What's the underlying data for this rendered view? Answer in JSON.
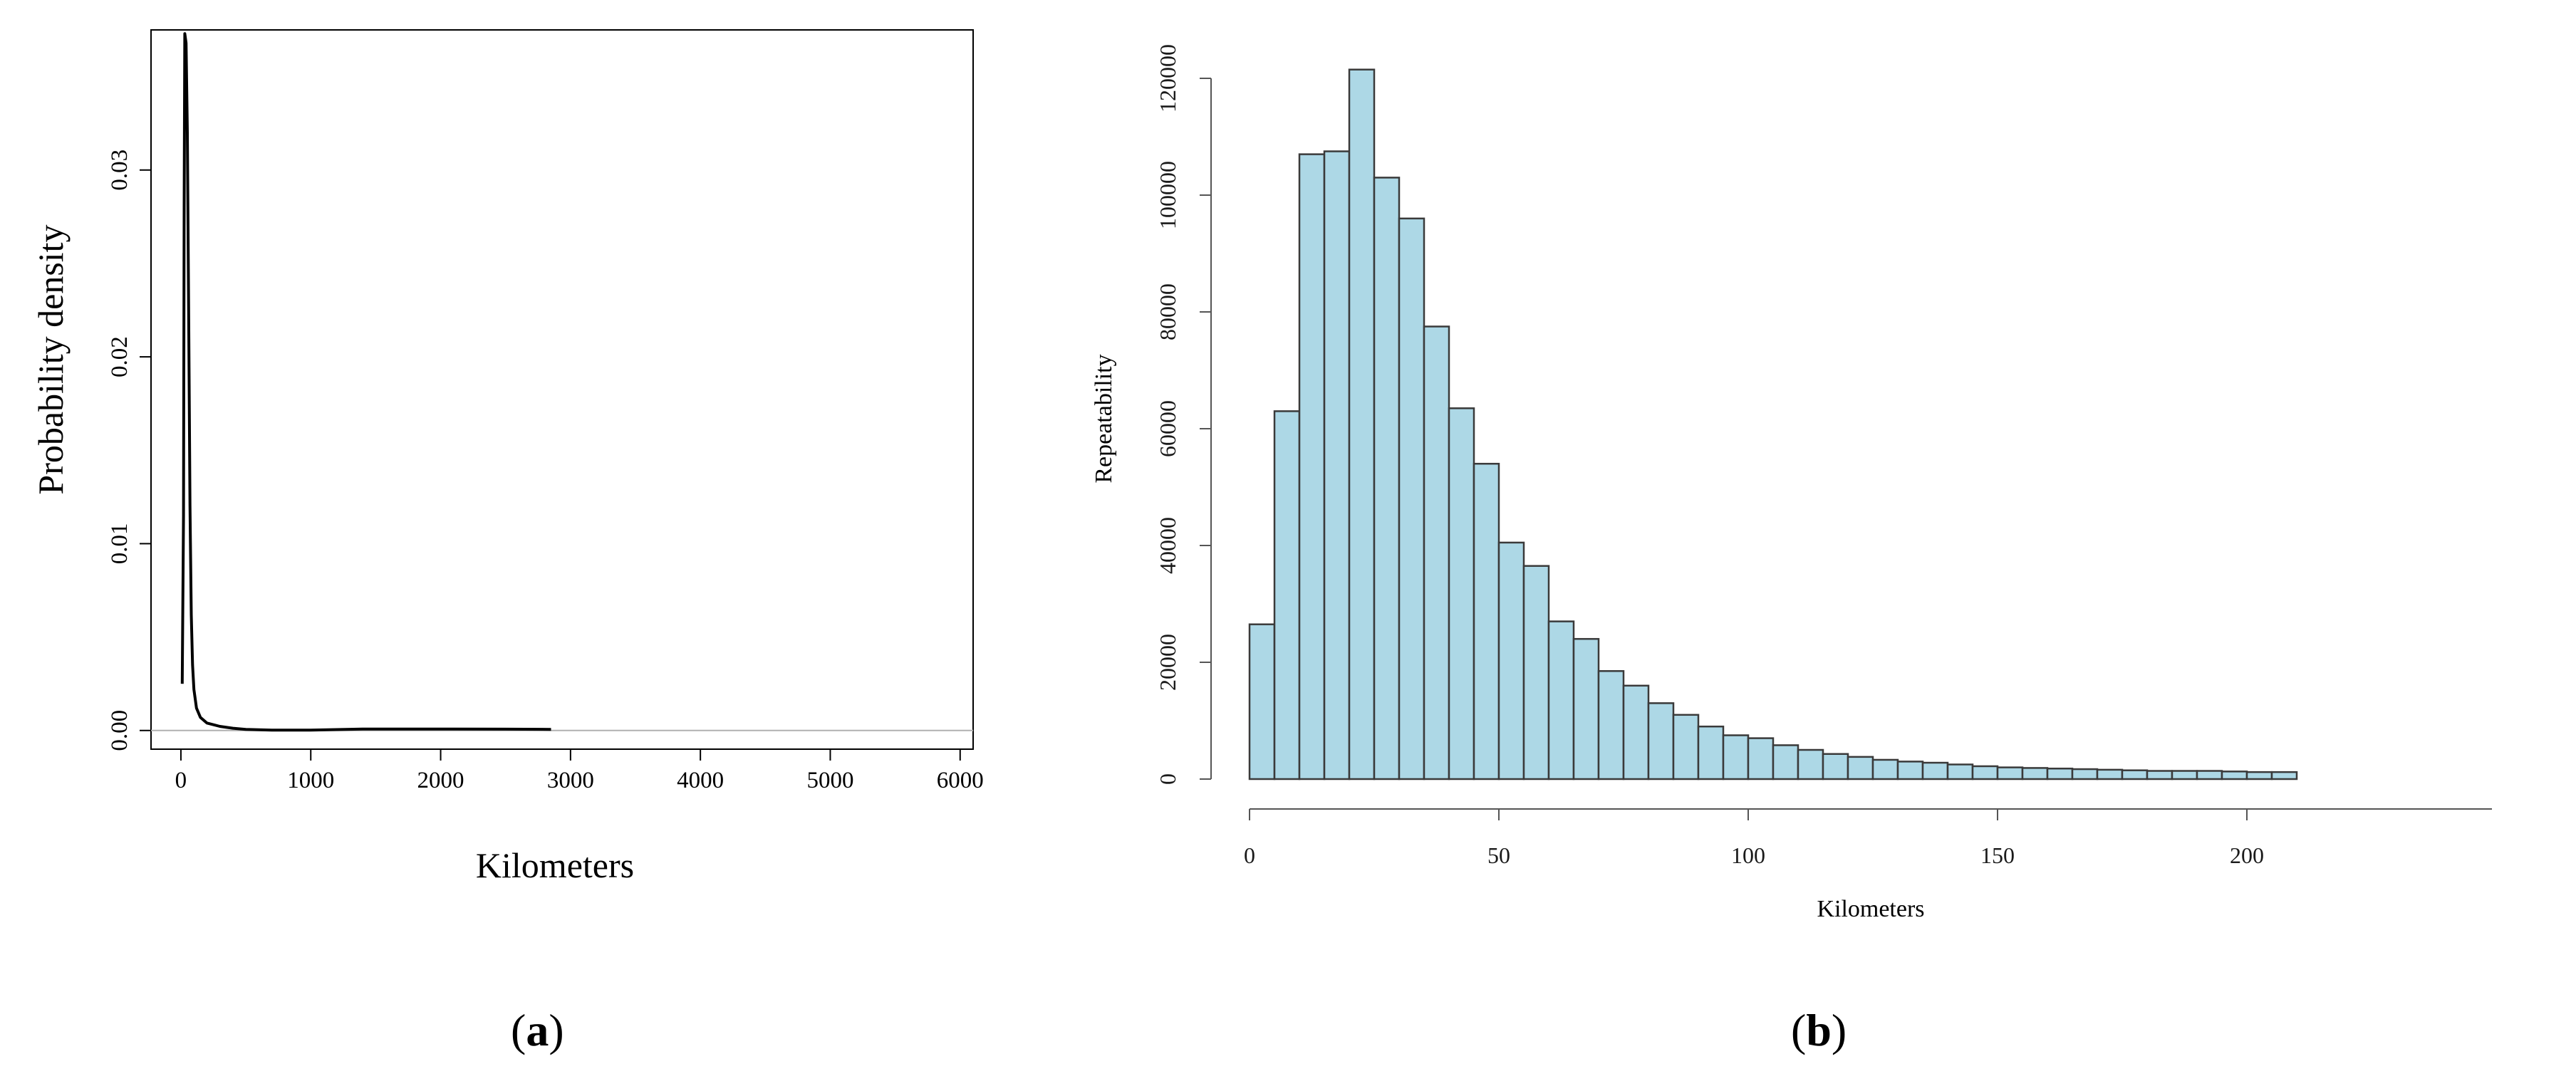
{
  "chart_data": [
    {
      "panel_label": "(a)",
      "panel_letter": "a",
      "type": "line",
      "xlabel": "Kilometers",
      "ylabel": "Probability density",
      "xlim": [
        -230,
        6100
      ],
      "ylim": [
        -0.001,
        0.0375
      ],
      "xticks": [
        0,
        1000,
        2000,
        3000,
        4000,
        5000,
        6000
      ],
      "yticks": [
        0.0,
        0.01,
        0.02,
        0.03
      ],
      "ytick_labels": [
        "0.00",
        "0.01",
        "0.02",
        "0.03"
      ],
      "xtick_labels": [
        "0",
        "1000",
        "2000",
        "3000",
        "4000",
        "5000",
        "6000"
      ],
      "baseline": 0,
      "baseline_color": "#b0b0b0",
      "line_color": "#000000",
      "series": [
        {
          "x": [
            10,
            20,
            25,
            30,
            40,
            50,
            60,
            70,
            80,
            90,
            100,
            120,
            150,
            200,
            300,
            400,
            500,
            700,
            1000,
            1400,
            2000,
            2500,
            2850
          ],
          "y": [
            0.0025,
            0.0115,
            0.028,
            0.0373,
            0.0368,
            0.032,
            0.022,
            0.012,
            0.0062,
            0.0035,
            0.0022,
            0.0012,
            0.0007,
            0.0004,
            0.00022,
            0.00012,
            6e-05,
            2e-05,
            2e-05,
            8e-05,
            8e-05,
            7e-05,
            6e-05
          ]
        }
      ]
    },
    {
      "panel_label": "(b)",
      "panel_letter": "b",
      "type": "bar",
      "xlabel": "Kilometers",
      "ylabel": "Repeatability",
      "bin_width": 5,
      "xlim": [
        -5,
        209
      ],
      "ylim": [
        0,
        125000
      ],
      "xticks": [
        0,
        50,
        100,
        150,
        200
      ],
      "xtick_labels": [
        "0",
        "50",
        "100",
        "150",
        "200"
      ],
      "yticks": [
        0,
        20000,
        40000,
        60000,
        80000,
        100000,
        120000
      ],
      "ytick_labels": [
        "0",
        "20000",
        "40000",
        "60000",
        "80000",
        "100000",
        "120000"
      ],
      "bar_color": "#add8e6",
      "bar_edge_color": "#3a3a3a",
      "bin_starts": [
        0,
        5,
        10,
        15,
        20,
        25,
        30,
        35,
        40,
        45,
        50,
        55,
        60,
        65,
        70,
        75,
        80,
        85,
        90,
        95,
        100,
        105,
        110,
        115,
        120,
        125,
        130,
        135,
        140,
        145,
        150,
        155,
        160,
        165,
        170,
        175,
        180,
        185,
        190,
        195,
        200,
        205
      ],
      "values": [
        26500,
        63000,
        107000,
        107500,
        121500,
        103000,
        96000,
        77500,
        63500,
        54000,
        40500,
        36500,
        27000,
        24000,
        18500,
        16000,
        13000,
        11000,
        9000,
        7500,
        7000,
        5800,
        5000,
        4300,
        3800,
        3300,
        3000,
        2800,
        2500,
        2200,
        2000,
        1900,
        1800,
        1700,
        1600,
        1500,
        1400,
        1400,
        1400,
        1300,
        1200,
        1200
      ]
    }
  ]
}
